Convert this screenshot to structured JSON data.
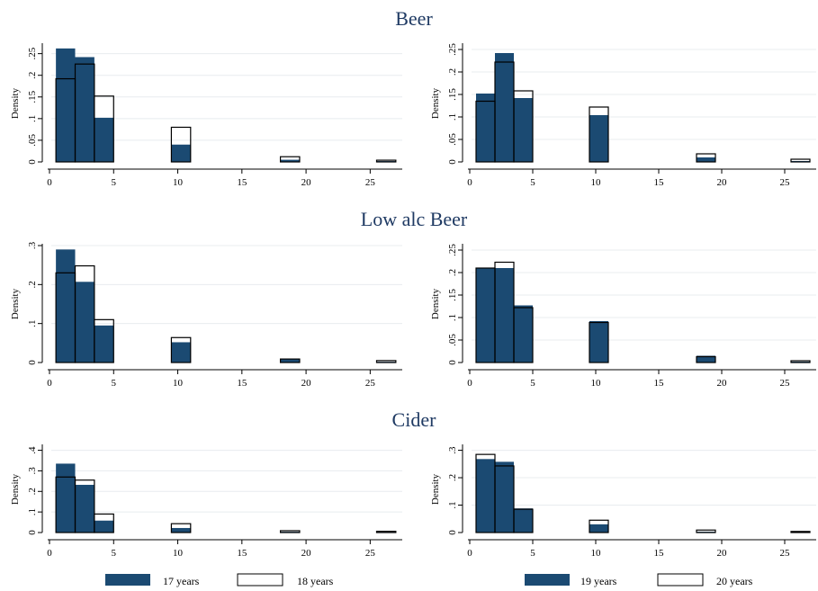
{
  "colors": {
    "filled_series": "#1b4a72",
    "outline_series": "#000000",
    "title": "#1f3a63"
  },
  "titles": [
    "Beer",
    "Low alc Beer",
    "Cider"
  ],
  "legends": [
    {
      "items": [
        {
          "name": "17 years",
          "style": "filled"
        },
        {
          "name": "18 years",
          "style": "outline"
        }
      ]
    },
    {
      "items": [
        {
          "name": "19 years",
          "style": "filled"
        },
        {
          "name": "20 years",
          "style": "outline"
        }
      ]
    }
  ],
  "chart_data": [
    {
      "type": "bar",
      "section": "Beer",
      "column": "left",
      "ylabel": "Density",
      "xlim": [
        0,
        27.5
      ],
      "ylim": [
        0,
        0.27
      ],
      "xticks": [
        "0",
        "5",
        "10",
        "15",
        "20",
        "25"
      ],
      "yticks": [
        "0",
        ".05",
        ".1",
        ".15",
        ".2",
        ".25"
      ],
      "ytick_values": [
        0,
        0.05,
        0.1,
        0.15,
        0.2,
        0.25
      ],
      "x": [
        [
          0.5,
          2
        ],
        [
          2,
          3.5
        ],
        [
          3.5,
          5
        ],
        [
          9.5,
          11
        ],
        [
          18,
          19.5
        ],
        [
          25.5,
          27
        ]
      ],
      "series": [
        {
          "name": "17 years",
          "style": "filled",
          "values": [
            0.262,
            0.242,
            0.102,
            0.04,
            0.005,
            0.002
          ]
        },
        {
          "name": "18 years",
          "style": "outline",
          "values": [
            0.192,
            0.226,
            0.152,
            0.08,
            0.012,
            0.004
          ]
        }
      ]
    },
    {
      "type": "bar",
      "section": "Beer",
      "column": "right",
      "ylabel": "Density",
      "xlim": [
        0,
        27.5
      ],
      "ylim": [
        0,
        0.26
      ],
      "xticks": [
        "0",
        "5",
        "10",
        "15",
        "20",
        "25"
      ],
      "yticks": [
        "0",
        ".05",
        ".1",
        ".15",
        ".2",
        ".25"
      ],
      "ytick_values": [
        0,
        0.05,
        0.1,
        0.15,
        0.2,
        0.25
      ],
      "x": [
        [
          0.5,
          2
        ],
        [
          2,
          3.5
        ],
        [
          3.5,
          5
        ],
        [
          9.5,
          11
        ],
        [
          18,
          19.5
        ],
        [
          25.5,
          27
        ]
      ],
      "series": [
        {
          "name": "19 years",
          "style": "filled",
          "values": [
            0.152,
            0.242,
            0.142,
            0.104,
            0.01,
            0.002
          ]
        },
        {
          "name": "20 years",
          "style": "outline",
          "values": [
            0.135,
            0.222,
            0.158,
            0.122,
            0.018,
            0.006
          ]
        }
      ]
    },
    {
      "type": "bar",
      "section": "Low alc Beer",
      "column": "left",
      "ylabel": "Density",
      "xlim": [
        0,
        27.5
      ],
      "ylim": [
        0,
        0.3
      ],
      "xticks": [
        "0",
        "5",
        "10",
        "15",
        "20",
        "25"
      ],
      "yticks": [
        "0",
        ".1",
        ".2",
        ".3"
      ],
      "ytick_values": [
        0,
        0.1,
        0.2,
        0.3
      ],
      "x": [
        [
          0.5,
          2
        ],
        [
          2,
          3.5
        ],
        [
          3.5,
          5
        ],
        [
          9.5,
          11
        ],
        [
          18,
          19.5
        ],
        [
          25.5,
          27
        ]
      ],
      "series": [
        {
          "name": "17 years",
          "style": "filled",
          "values": [
            0.29,
            0.207,
            0.095,
            0.052,
            0.01,
            0.002
          ]
        },
        {
          "name": "18 years",
          "style": "outline",
          "values": [
            0.23,
            0.248,
            0.11,
            0.064,
            0.009,
            0.005
          ]
        }
      ]
    },
    {
      "type": "bar",
      "section": "Low alc Beer",
      "column": "right",
      "ylabel": "Density",
      "xlim": [
        0,
        27.5
      ],
      "ylim": [
        0,
        0.26
      ],
      "xticks": [
        "0",
        "5",
        "10",
        "15",
        "20",
        "25"
      ],
      "yticks": [
        "0",
        ".05",
        ".1",
        ".15",
        ".2",
        ".25"
      ],
      "ytick_values": [
        0,
        0.05,
        0.1,
        0.15,
        0.2,
        0.25
      ],
      "x": [
        [
          0.5,
          2
        ],
        [
          2,
          3.5
        ],
        [
          3.5,
          5
        ],
        [
          9.5,
          11
        ],
        [
          18,
          19.5
        ],
        [
          25.5,
          27
        ]
      ],
      "series": [
        {
          "name": "19 years",
          "style": "filled",
          "values": [
            0.21,
            0.21,
            0.127,
            0.092,
            0.015,
            0.002
          ]
        },
        {
          "name": "20 years",
          "style": "outline",
          "values": [
            0.21,
            0.223,
            0.122,
            0.089,
            0.013,
            0.004
          ]
        }
      ]
    },
    {
      "type": "bar",
      "section": "Cider",
      "column": "left",
      "ylabel": "Density",
      "xlim": [
        0,
        27.5
      ],
      "ylim": [
        0,
        0.42
      ],
      "xticks": [
        "0",
        "5",
        "10",
        "15",
        "20",
        "25"
      ],
      "yticks": [
        "0",
        ".1",
        ".2",
        ".3",
        ".4"
      ],
      "ytick_values": [
        0,
        0.1,
        0.2,
        0.3,
        0.4
      ],
      "x": [
        [
          0.5,
          2
        ],
        [
          2,
          3.5
        ],
        [
          3.5,
          5
        ],
        [
          9.5,
          11
        ],
        [
          18,
          19.5
        ],
        [
          25.5,
          27
        ]
      ],
      "series": [
        {
          "name": "17 years",
          "style": "filled",
          "values": [
            0.335,
            0.232,
            0.058,
            0.022,
            0.004,
            0.003
          ]
        },
        {
          "name": "18 years",
          "style": "outline",
          "values": [
            0.27,
            0.255,
            0.09,
            0.043,
            0.009,
            0.006
          ]
        }
      ]
    },
    {
      "type": "bar",
      "section": "Cider",
      "column": "right",
      "ylabel": "Density",
      "xlim": [
        0,
        27.5
      ],
      "ylim": [
        0,
        0.315
      ],
      "xticks": [
        "0",
        "5",
        "10",
        "15",
        "20",
        "25"
      ],
      "yticks": [
        "0",
        ".1",
        ".2",
        ".3"
      ],
      "ytick_values": [
        0,
        0.1,
        0.2,
        0.3
      ],
      "x": [
        [
          0.5,
          2
        ],
        [
          2,
          3.5
        ],
        [
          3.5,
          5
        ],
        [
          9.5,
          11
        ],
        [
          18,
          19.5
        ],
        [
          25.5,
          27
        ]
      ],
      "series": [
        {
          "name": "19 years",
          "style": "filled",
          "values": [
            0.268,
            0.258,
            0.088,
            0.03,
            0.003,
            0.002
          ]
        },
        {
          "name": "20 years",
          "style": "outline",
          "values": [
            0.285,
            0.243,
            0.085,
            0.045,
            0.009,
            0.004
          ]
        }
      ]
    }
  ]
}
